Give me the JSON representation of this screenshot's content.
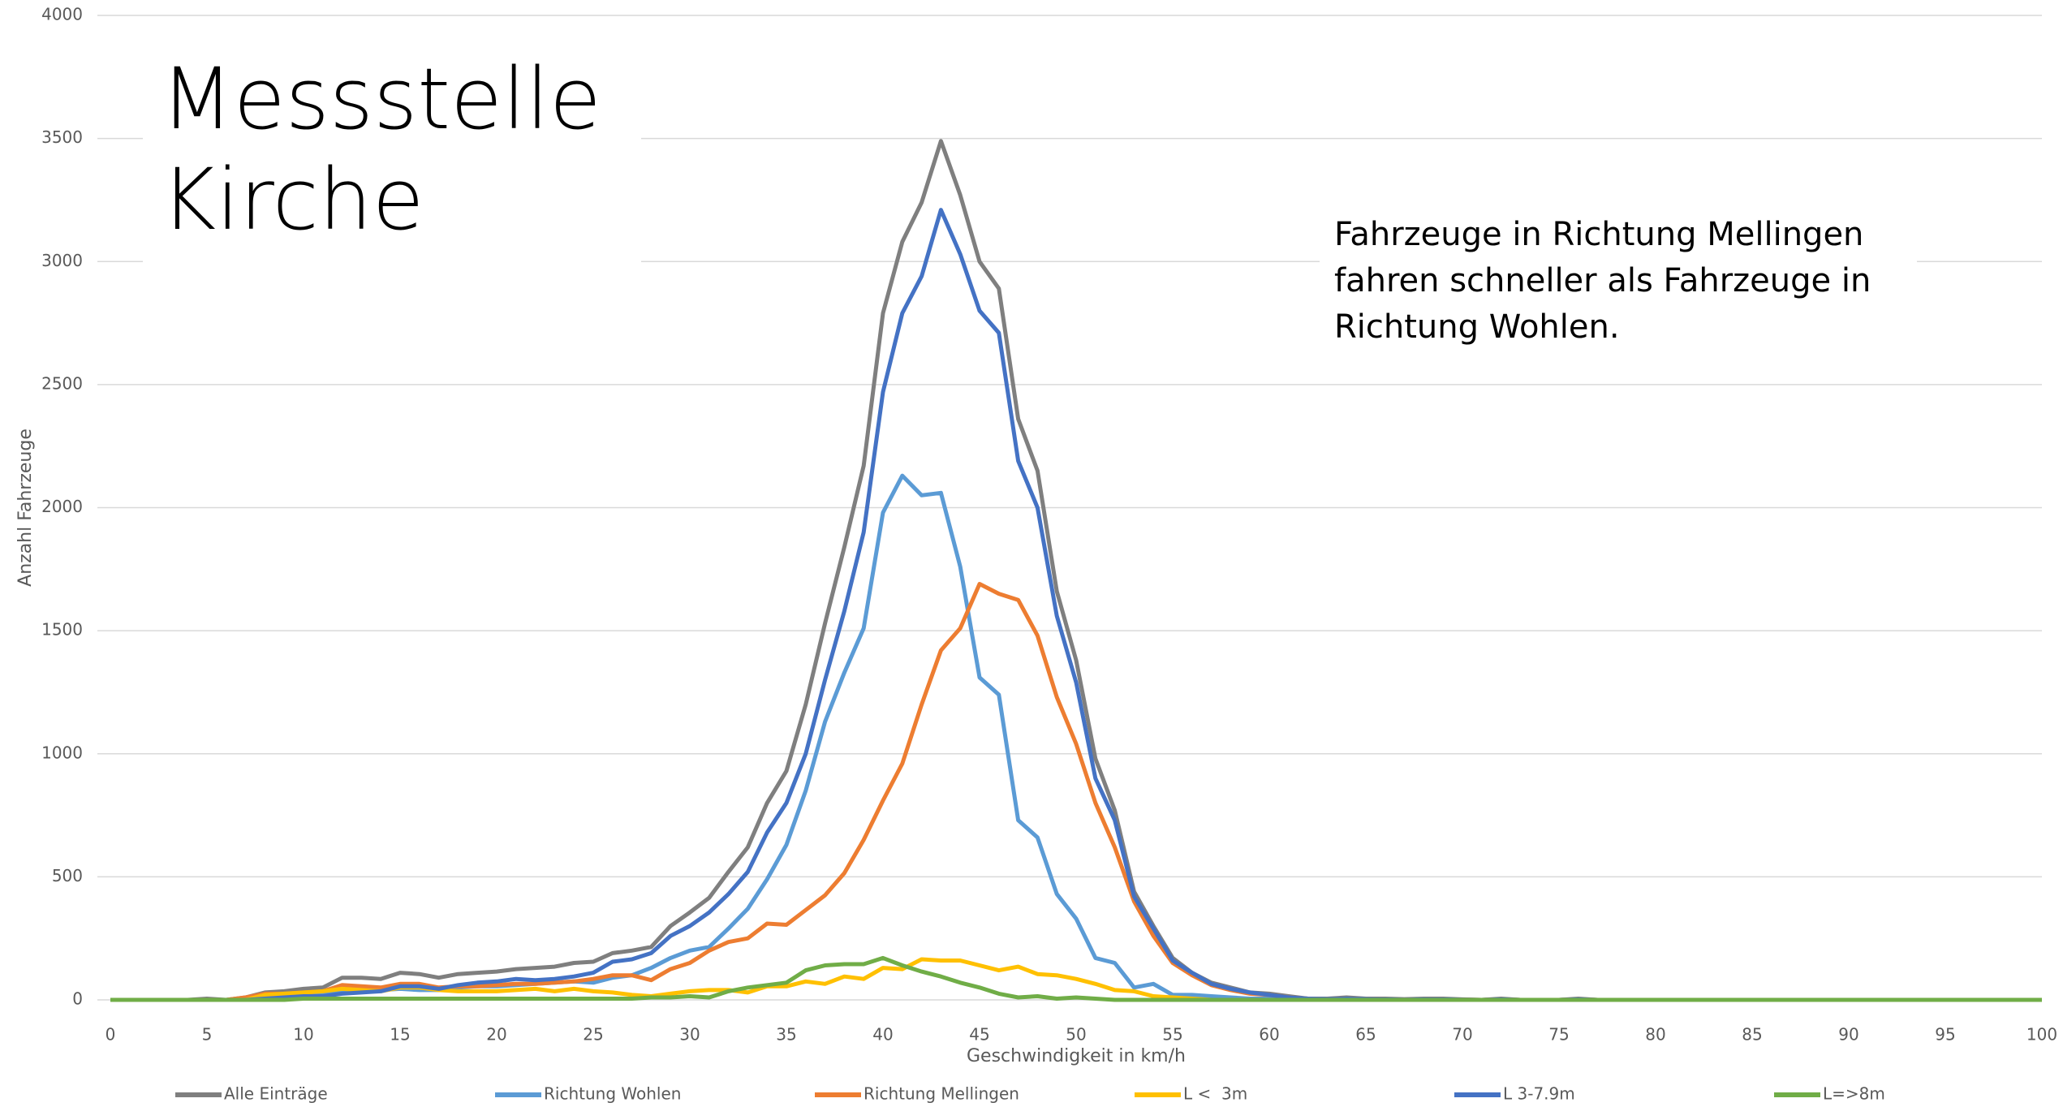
{
  "chart_data": {
    "type": "line",
    "title": "Messstelle Kirche",
    "annotation": "Fahrzeuge in Richtung Mellingen fahren schneller als Fahrzeuge in Richtung Wohlen.",
    "xlabel": "Geschwindigkeit in km/h",
    "ylabel": "Anzahl Fahrzeuge",
    "x": [
      0,
      1,
      2,
      3,
      4,
      5,
      6,
      7,
      8,
      9,
      10,
      11,
      12,
      13,
      14,
      15,
      16,
      17,
      18,
      19,
      20,
      21,
      22,
      23,
      24,
      25,
      26,
      27,
      28,
      29,
      30,
      31,
      32,
      33,
      34,
      35,
      36,
      37,
      38,
      39,
      40,
      41,
      42,
      43,
      44,
      45,
      46,
      47,
      48,
      49,
      50,
      51,
      52,
      53,
      54,
      55,
      56,
      57,
      58,
      59,
      60,
      61,
      62,
      63,
      64,
      65,
      66,
      67,
      68,
      69,
      70,
      71,
      72,
      73,
      74,
      75,
      76,
      77,
      78,
      79,
      80,
      81,
      82,
      83,
      84,
      85,
      86,
      87,
      88,
      89,
      90,
      91,
      92,
      93,
      94,
      95,
      96,
      97,
      98,
      99,
      100
    ],
    "xlim": [
      0,
      100
    ],
    "xticks": [
      0,
      5,
      10,
      15,
      20,
      25,
      30,
      35,
      40,
      45,
      50,
      55,
      60,
      65,
      70,
      75,
      80,
      85,
      90,
      95,
      100
    ],
    "ylim": [
      0,
      4000
    ],
    "yticks": [
      0,
      500,
      1000,
      1500,
      2000,
      2500,
      3000,
      3500,
      4000
    ],
    "grid": true,
    "legend": "bottom",
    "series": [
      {
        "name": "Alle Einträge",
        "color": "#7f7f7f",
        "values": [
          0,
          0,
          0,
          0,
          0,
          5,
          0,
          10,
          30,
          35,
          45,
          50,
          90,
          90,
          85,
          110,
          105,
          90,
          105,
          110,
          115,
          125,
          130,
          135,
          150,
          155,
          190,
          200,
          215,
          300,
          355,
          415,
          520,
          620,
          800,
          930,
          1200,
          1530,
          1840,
          2170,
          2790,
          3080,
          3240,
          3490,
          3270,
          3000,
          2890,
          2360,
          2150,
          1660,
          1380,
          980,
          770,
          440,
          300,
          170,
          110,
          70,
          50,
          30,
          25,
          15,
          5,
          5,
          10,
          5,
          5,
          3,
          5,
          5,
          2,
          0,
          5,
          0,
          0,
          0,
          5,
          0,
          0,
          0,
          0,
          0,
          0,
          0,
          0,
          0,
          0,
          0,
          0,
          0,
          0,
          0,
          0,
          0,
          0,
          0,
          0,
          0,
          0,
          0,
          0
        ]
      },
      {
        "name": "Richtung Wohlen",
        "color": "#5b9bd5",
        "values": [
          0,
          0,
          0,
          0,
          0,
          0,
          0,
          5,
          10,
          15,
          20,
          25,
          30,
          35,
          40,
          45,
          40,
          40,
          50,
          55,
          55,
          60,
          65,
          70,
          75,
          70,
          90,
          100,
          130,
          170,
          200,
          215,
          290,
          370,
          490,
          630,
          850,
          1130,
          1330,
          1510,
          1980,
          2130,
          2050,
          2060,
          1760,
          1310,
          1240,
          730,
          660,
          430,
          330,
          170,
          150,
          50,
          65,
          20,
          20,
          15,
          10,
          5,
          5,
          3,
          2,
          2,
          3,
          2,
          1,
          1,
          2,
          1,
          0,
          0,
          1,
          0,
          0,
          0,
          1,
          0,
          0,
          0,
          0,
          0,
          0,
          0,
          0,
          0,
          0,
          0,
          0,
          0,
          0,
          0,
          0,
          0,
          0,
          0,
          0,
          0,
          0,
          0,
          0
        ]
      },
      {
        "name": "Richtung Mellingen",
        "color": "#ed7d31",
        "values": [
          0,
          0,
          0,
          0,
          0,
          0,
          0,
          10,
          25,
          25,
          30,
          35,
          60,
          55,
          50,
          65,
          65,
          50,
          55,
          55,
          60,
          65,
          65,
          70,
          75,
          85,
          100,
          100,
          80,
          125,
          150,
          200,
          235,
          250,
          310,
          305,
          365,
          425,
          515,
          650,
          810,
          960,
          1200,
          1420,
          1510,
          1690,
          1650,
          1625,
          1480,
          1230,
          1040,
          800,
          620,
          400,
          260,
          150,
          100,
          60,
          40,
          25,
          20,
          10,
          5,
          3,
          5,
          3,
          2,
          1,
          2,
          2,
          1,
          0,
          2,
          0,
          0,
          0,
          2,
          0,
          0,
          0,
          0,
          0,
          0,
          0,
          0,
          0,
          0,
          0,
          0,
          0,
          0,
          0,
          0,
          0,
          0,
          0,
          0,
          0,
          0,
          0,
          0
        ]
      },
      {
        "name": "L <  3m",
        "color": "#ffc000",
        "values": [
          0,
          0,
          0,
          0,
          0,
          0,
          0,
          0,
          20,
          25,
          30,
          35,
          45,
          40,
          35,
          50,
          50,
          40,
          35,
          35,
          35,
          40,
          45,
          35,
          45,
          35,
          30,
          20,
          15,
          25,
          35,
          40,
          40,
          30,
          55,
          55,
          75,
          65,
          95,
          85,
          130,
          125,
          165,
          160,
          160,
          140,
          120,
          135,
          105,
          100,
          85,
          65,
          40,
          35,
          15,
          10,
          5,
          0,
          0,
          0,
          0,
          0,
          0,
          0,
          0,
          0,
          0,
          0,
          0,
          0,
          0,
          0,
          0,
          0,
          0,
          0,
          0,
          0,
          0,
          0,
          0,
          0,
          0,
          0,
          0,
          0,
          0,
          0,
          0,
          0,
          0,
          0,
          0,
          0,
          0,
          0,
          0,
          0,
          0,
          0,
          0
        ]
      },
      {
        "name": "L 3-7.9m",
        "color": "#4472c4",
        "values": [
          0,
          0,
          0,
          0,
          0,
          0,
          0,
          0,
          5,
          10,
          15,
          15,
          25,
          30,
          35,
          55,
          55,
          45,
          60,
          70,
          75,
          85,
          80,
          85,
          95,
          110,
          155,
          165,
          190,
          260,
          300,
          355,
          430,
          520,
          680,
          800,
          1000,
          1300,
          1580,
          1900,
          2470,
          2790,
          2940,
          3210,
          3030,
          2800,
          2710,
          2190,
          2000,
          1560,
          1290,
          900,
          730,
          420,
          290,
          160,
          110,
          65,
          45,
          30,
          20,
          10,
          5,
          3,
          5,
          3,
          2,
          1,
          2,
          2,
          1,
          0,
          2,
          0,
          0,
          0,
          2,
          0,
          0,
          0,
          0,
          0,
          0,
          0,
          0,
          0,
          0,
          0,
          0,
          0,
          0,
          0,
          0,
          0,
          0,
          0,
          0,
          0,
          0,
          0,
          0
        ]
      },
      {
        "name": "L=>8m",
        "color": "#70ad47",
        "values": [
          0,
          0,
          0,
          0,
          0,
          0,
          0,
          0,
          0,
          0,
          5,
          5,
          5,
          5,
          5,
          5,
          5,
          5,
          5,
          5,
          5,
          5,
          5,
          5,
          5,
          5,
          5,
          5,
          10,
          10,
          15,
          10,
          35,
          50,
          60,
          70,
          120,
          140,
          145,
          145,
          170,
          140,
          115,
          95,
          70,
          50,
          25,
          10,
          15,
          5,
          10,
          5,
          0,
          0,
          0,
          0,
          0,
          0,
          0,
          0,
          0,
          0,
          0,
          0,
          0,
          0,
          0,
          0,
          0,
          0,
          0,
          0,
          0,
          0,
          0,
          0,
          0,
          0,
          0,
          0,
          0,
          0,
          0,
          0,
          0,
          0,
          0,
          0,
          0,
          0,
          0,
          0,
          0,
          0,
          0,
          0,
          0,
          0,
          0,
          0,
          0
        ]
      }
    ]
  }
}
